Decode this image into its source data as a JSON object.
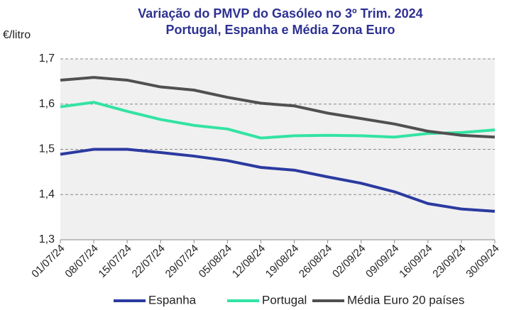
{
  "chart_data": {
    "type": "line",
    "title": "Variação do PMVP do Gasóleo no 3º Trim. 2024",
    "subtitle": "Portugal, Espanha e Média Zona Euro",
    "ylabel": "€/litro",
    "categories": [
      "01/07/24",
      "08/07/24",
      "15/07/24",
      "22/07/24",
      "29/07/24",
      "05/08/24",
      "12/08/24",
      "19/08/24",
      "26/08/24",
      "02/09/24",
      "09/09/24",
      "16/09/24",
      "23/09/24",
      "30/09/24"
    ],
    "series": [
      {
        "name": "Espanha",
        "color": "#2b3aa0",
        "values": [
          1.489,
          1.5,
          1.5,
          1.493,
          1.485,
          1.475,
          1.46,
          1.454,
          1.439,
          1.425,
          1.406,
          1.38,
          1.368,
          1.363
        ]
      },
      {
        "name": "Portugal",
        "color": "#33e3a3",
        "values": [
          1.594,
          1.604,
          1.584,
          1.566,
          1.553,
          1.545,
          1.525,
          1.53,
          1.531,
          1.53,
          1.527,
          1.535,
          1.537,
          1.543
        ]
      },
      {
        "name": "Média Euro 20 países",
        "color": "#505050",
        "values": [
          1.653,
          1.659,
          1.653,
          1.638,
          1.631,
          1.615,
          1.602,
          1.596,
          1.58,
          1.568,
          1.556,
          1.54,
          1.531,
          1.527
        ]
      }
    ],
    "ylim": [
      1.3,
      1.7
    ],
    "yticks": [
      {
        "value": 1.3,
        "label": "1,3"
      },
      {
        "value": 1.4,
        "label": "1,4"
      },
      {
        "value": 1.5,
        "label": "1,5"
      },
      {
        "value": 1.6,
        "label": "1,6"
      },
      {
        "value": 1.7,
        "label": "1,7"
      }
    ],
    "grid": true,
    "legend": "bottom"
  }
}
